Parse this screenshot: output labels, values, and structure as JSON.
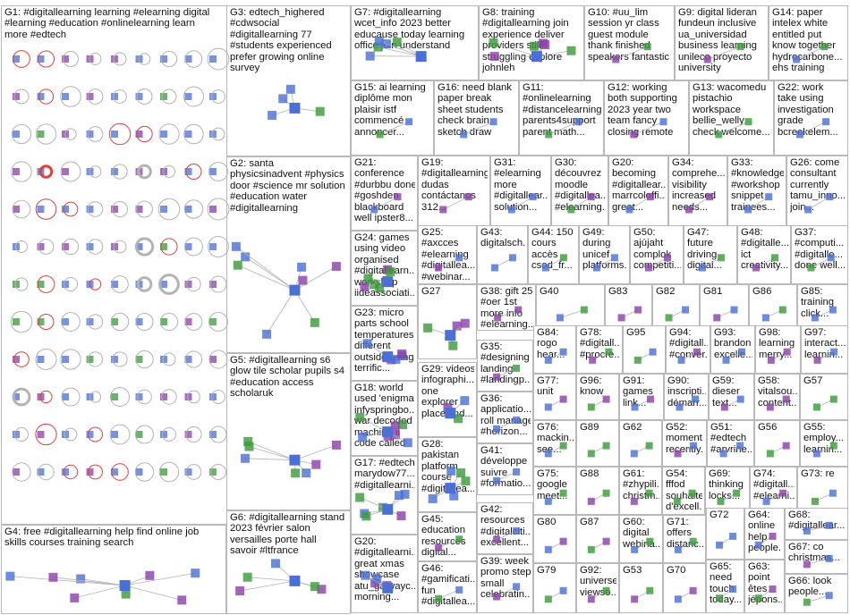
{
  "groups": [
    {
      "id": "G1",
      "text": "G1: #digitallearning learning #elearning digital\n#learning #education #onlinelearning learn\nmore #edtech"
    },
    {
      "id": "G3",
      "text": "G3: edtech_highered\n#cdwsocial\n#digitallearning 77\n#students experienced\nprefer growing online\nsurvey"
    },
    {
      "id": "G7",
      "text": "G7: #digitallearning\nwcet_info 2023 better\neducause today learning\noffice join understand"
    },
    {
      "id": "G8",
      "text": "G8: training\n#digitallearning join\nexperience deliver\nproviders still\nstruggling explore\njohnleh"
    },
    {
      "id": "G10",
      "text": "G10: #uu_lim\nsession yr class\nguest module\nthank finished\nspeakers fantastic"
    },
    {
      "id": "G9",
      "text": "G9: digital lideran\nfundeun inclusive\nua_universidad\nbusiness learning\nunileco proyecto\nuniversity"
    },
    {
      "id": "G14",
      "text": "G14: paper\nintelex white\nentitled put\nknow together\nhydrocarbone...\nehs training"
    },
    {
      "id": "G15",
      "text": "G15: ai learning\ndiplôme mon\nplaisir istf\ncommencé\nannoncer..."
    },
    {
      "id": "G16",
      "text": "G16: need blank\npaper break\nsheet students\ncheck brain\nsketch draw"
    },
    {
      "id": "G11",
      "text": "G11:\n#onlinelearning\n#distancelearning\nparents4support\nparent math..."
    },
    {
      "id": "G12",
      "text": "G12: working\nboth supporting\n2023 year two\nteam fancy\nclosing remote"
    },
    {
      "id": "G13",
      "text": "G13: wacomedu\npistachio\nworkspace\nbellie_welly\ncheck welcome..."
    },
    {
      "id": "G22",
      "text": "G22: work\ntake using\ninvestigation\ngrade\nbcreekelem..."
    },
    {
      "id": "G2",
      "text": "G2: santa\nphysicsinadvent #physics\ndoor #science mr solution\n#education water\n#digitallearning"
    },
    {
      "id": "G21",
      "text": "G21:\nconference\n#durbbu done\n#goshden\nblackboard\nwell ipster8..."
    },
    {
      "id": "G19",
      "text": "G19:\n#digitallearning\ndudas\ncontáctanos\n312..."
    },
    {
      "id": "G31",
      "text": "G31:\n#elearning\nmore\n#digitallear...\nsolution..."
    },
    {
      "id": "G30",
      "text": "G30:\ndécouvrez\nmoodle\n#digitallea...\n#elearning..."
    },
    {
      "id": "G20s",
      "text": "G20:\nbecoming\n#digitallear...\nmarrcoloffi...\ngreat..."
    },
    {
      "id": "G34",
      "text": "G34:\ncomprehe...\nvisibility\nincreased\nneeds..."
    },
    {
      "id": "G33",
      "text": "G33:\n#knowledge\n#workshop\nsnippet\ntrainees..."
    },
    {
      "id": "G26",
      "text": "G26: come\nconsultant\ncurrently\ntamu_inno...\njoin..."
    },
    {
      "id": "G24",
      "text": "G24: games\nusing video\norganised\n#digitallearn...\nworkshop\niideassociati..."
    },
    {
      "id": "G25",
      "text": "G25:\n#axcces\n#elearning\n#digitallea...\n#webinar..."
    },
    {
      "id": "G43",
      "text": "G43:\ndigitalsch..."
    },
    {
      "id": "G44",
      "text": "G44: 150\ncours\naccès\ncsod_fr..."
    },
    {
      "id": "G49",
      "text": "G49:\nduring\nunicef\nplatforms..."
    },
    {
      "id": "G50",
      "text": "G50:\najújaht\ncomplok\ncompetiti..."
    },
    {
      "id": "G47",
      "text": "G47:\nfuture\ndriving\ndigital..."
    },
    {
      "id": "G48",
      "text": "G48:\n#digitalle...\nict\ncreativity..."
    },
    {
      "id": "G37",
      "text": "G37:\n#computi...\n#digitalle...\ndone well..."
    },
    {
      "id": "G5",
      "text": "G5: #digitallearning s6\nglow tile scholar pupils s4\n#education access\nscholaruk"
    },
    {
      "id": "G23",
      "text": "G23: micro\nparts school\ntemperatures\ndifferent\noutside using\nterrific..."
    },
    {
      "id": "G27",
      "text": "G27"
    },
    {
      "id": "G38",
      "text": "G38: gift 25\n#oer 1st\nmore info\n#elearning..."
    },
    {
      "id": "G40",
      "text": "G40"
    },
    {
      "id": "G83",
      "text": "G83"
    },
    {
      "id": "G82",
      "text": "G82"
    },
    {
      "id": "G81",
      "text": "G81"
    },
    {
      "id": "G86",
      "text": "G86"
    },
    {
      "id": "G85",
      "text": "G85:\ntraining\nclick..."
    },
    {
      "id": "G84",
      "text": "G84:\nrogo\nhear..."
    },
    {
      "id": "G78",
      "text": "G78:\n#digitall...\n#procre..."
    },
    {
      "id": "G95",
      "text": "G95"
    },
    {
      "id": "G94",
      "text": "G94:\n#digitall...\n#conver..."
    },
    {
      "id": "G93",
      "text": "G93:\nbrandon\nexcelle..."
    },
    {
      "id": "G98",
      "text": "G98:\nlearning\nmerry..."
    },
    {
      "id": "G97",
      "text": "G97:\ninteract...\nlearnin..."
    },
    {
      "id": "G35",
      "text": "G35:\n#designing\nlanding\n#landingp..."
    },
    {
      "id": "G29",
      "text": "G29: videos\ninfographi...\none\nexplorer\nplace find..."
    },
    {
      "id": "G18",
      "text": "G18: world\nused 'enigma\ninfyspringbo...\nwar decoded\nmachine ii\ncode called"
    },
    {
      "id": "G77",
      "text": "G77:\nunit"
    },
    {
      "id": "G96",
      "text": "G96:\nknow"
    },
    {
      "id": "G91",
      "text": "G91:\ngames\nlink..."
    },
    {
      "id": "G90",
      "text": "G90:\ninscripti...\ndémarr..."
    },
    {
      "id": "G59",
      "text": "G59:\ndieser\ntext..."
    },
    {
      "id": "G58",
      "text": "G58:\nvitalsou...\ncontent..."
    },
    {
      "id": "G57",
      "text": "G57"
    },
    {
      "id": "G36",
      "text": "G36:\napplicatio...\nroll manage\n#horizon..."
    },
    {
      "id": "G76",
      "text": "G76:\nmackin...\nsee..."
    },
    {
      "id": "G89",
      "text": "G89"
    },
    {
      "id": "G62",
      "text": "G62"
    },
    {
      "id": "G52",
      "text": "G52:\nmoment\nrecently..."
    },
    {
      "id": "G51",
      "text": "G51:\n#edtech\n#arvrine..."
    },
    {
      "id": "G56",
      "text": "G56"
    },
    {
      "id": "G55",
      "text": "G55:\nemploy...\nlearnin..."
    },
    {
      "id": "G28",
      "text": "G28:\npakistan\nplatform\ncourse\n#digitallea..."
    },
    {
      "id": "G41",
      "text": "G41:\ndéveloppe\nsuivre\n#formatio..."
    },
    {
      "id": "G75",
      "text": "G75:\ngoogle\nmeet..."
    },
    {
      "id": "G88",
      "text": "G88"
    },
    {
      "id": "G61",
      "text": "G61:\n#zhypili...\nchristm..."
    },
    {
      "id": "G54",
      "text": "G54:\nfffod\nsouhaite\nd'excell..."
    },
    {
      "id": "G69",
      "text": "G69:\nthinking\nlocks..."
    },
    {
      "id": "G74",
      "text": "G74:\n#digitall...\n#elearni..."
    },
    {
      "id": "G73",
      "text": "G73: re"
    },
    {
      "id": "G17",
      "text": "G17: #edtech\nmarydow77...\n#digitallearni..."
    },
    {
      "id": "G4",
      "text": "G4: free #digitallearning help find online job\nskills courses training search"
    },
    {
      "id": "G6",
      "text": "G6: #digitallearning stand\n2023 février salon\nversailles porte hall\nsavoir #ltfrance"
    },
    {
      "id": "G45",
      "text": "G45:\neducation\nresources\ndigital..."
    },
    {
      "id": "G42",
      "text": "G42:\nresources\n#digitalciti...\nexcellent..."
    },
    {
      "id": "G80",
      "text": "G80"
    },
    {
      "id": "G87",
      "text": "G87"
    },
    {
      "id": "G60",
      "text": "G60:\ndigital\nwebina..."
    },
    {
      "id": "G71",
      "text": "G71:\noffers\ndistanc..."
    },
    {
      "id": "G72",
      "text": "G72"
    },
    {
      "id": "G64",
      "text": "G64:\nonline\nhelp\npeople..."
    },
    {
      "id": "G68",
      "text": "G68:\n#digitallear..."
    },
    {
      "id": "G67",
      "text": "G67: co\nchristmas..."
    },
    {
      "id": "G20",
      "text": "G20:\n#digitallearni...\ngreat xmas\nshowcase\natu_galwayc...\nmorning..."
    },
    {
      "id": "G46",
      "text": "G46:\n#gamificati...\nfun\n#digitallea..."
    },
    {
      "id": "G39",
      "text": "G39: week\npromo step\nsmall\ncelebratin..."
    },
    {
      "id": "G79",
      "text": "G79"
    },
    {
      "id": "G92",
      "text": "G92:\nuniverse\nviewso..."
    },
    {
      "id": "G53",
      "text": "G53"
    },
    {
      "id": "G70",
      "text": "G70"
    },
    {
      "id": "G65",
      "text": "G65:\nneed\ntouch\ntoday..."
    },
    {
      "id": "G63",
      "text": "G63:\npoint\nêtes\njépons..."
    },
    {
      "id": "G66",
      "text": "G66: look\npeople..."
    }
  ],
  "colors": {
    "box_border": "#b9b9b9",
    "edge": "#b3b3b3",
    "self_loop": "#e04040",
    "node_blue": "#4a6fd6",
    "node_green": "#3a9a3a",
    "node_purple": "#8a3fa8"
  }
}
